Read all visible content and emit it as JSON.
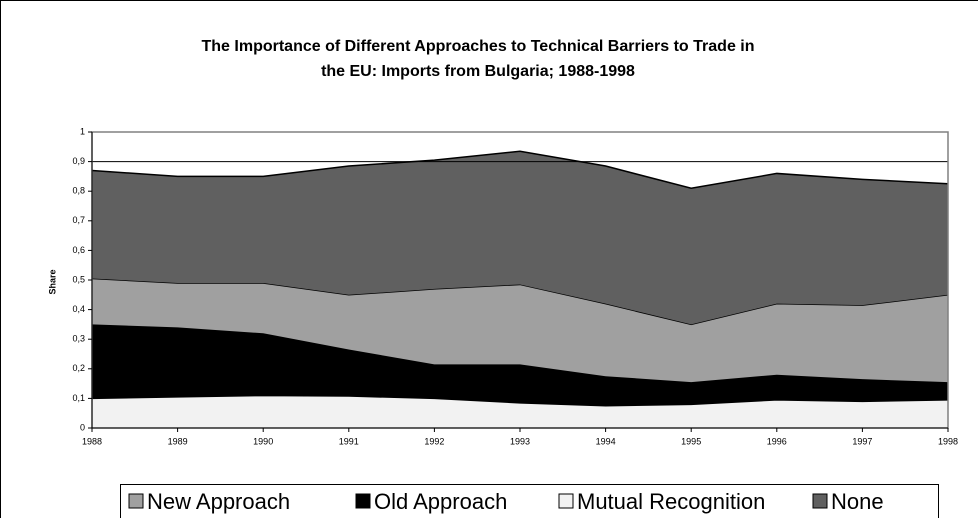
{
  "chart_data": {
    "type": "stacked_area",
    "title": [
      "The Importance of Different Approaches to Technical Barriers to Trade in",
      "the EU: Imports from Bulgaria; 1988-1998"
    ],
    "ylabel": "Share",
    "x": [
      1988,
      1989,
      1990,
      1991,
      1992,
      1993,
      1994,
      1995,
      1996,
      1997,
      1998
    ],
    "xlim": [
      1988,
      1998
    ],
    "xticks": [
      1988,
      1989,
      1990,
      1991,
      1992,
      1993,
      1994,
      1995,
      1996,
      1997,
      1998
    ],
    "ylim": [
      0,
      1
    ],
    "yticks": [
      0,
      {
        "value": 0.1,
        "label": "0,1"
      },
      {
        "value": 0.2,
        "label": "0,2"
      },
      {
        "value": 0.3,
        "label": "0,3"
      },
      {
        "value": 0.4,
        "label": "0,4"
      },
      {
        "value": 0.5,
        "label": "0,5"
      },
      {
        "value": 0.6,
        "label": "0,6"
      },
      {
        "value": 0.7,
        "label": "0,7"
      },
      {
        "value": 0.8,
        "label": "0,8"
      },
      {
        "value": 0.9,
        "label": "0,9"
      },
      1
    ],
    "hline": 0.9,
    "legend": "bottom",
    "legend_order": [
      2,
      1,
      0,
      3
    ],
    "series": [
      {
        "name": "Mutual Recognition",
        "color": "#f2f2f2",
        "values": [
          0.1,
          0.105,
          0.11,
          0.108,
          0.1,
          0.085,
          0.075,
          0.08,
          0.095,
          0.09,
          0.095
        ]
      },
      {
        "name": "Old Approach",
        "color": "#000000",
        "values": [
          0.25,
          0.235,
          0.21,
          0.157,
          0.115,
          0.13,
          0.1,
          0.075,
          0.085,
          0.075,
          0.06
        ]
      },
      {
        "name": "New Approach",
        "color": "#a0a0a0",
        "values": [
          0.155,
          0.15,
          0.17,
          0.185,
          0.255,
          0.27,
          0.245,
          0.195,
          0.24,
          0.25,
          0.295
        ]
      },
      {
        "name": "None",
        "color": "#606060",
        "values": [
          0.365,
          0.36,
          0.36,
          0.435,
          0.435,
          0.45,
          0.465,
          0.46,
          0.44,
          0.425,
          0.375
        ]
      }
    ]
  }
}
